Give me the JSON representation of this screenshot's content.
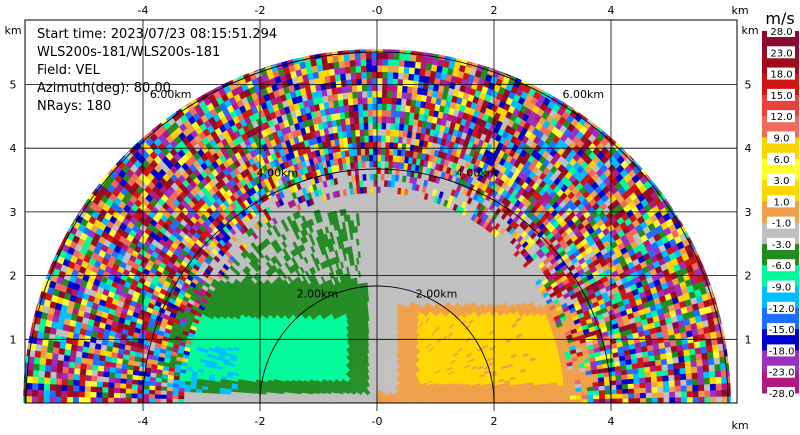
{
  "info": {
    "start_time": "Start time: 2023/07/23 08:15:51.294",
    "site": "WLS200s-181/WLS200s-181",
    "field": "Field: VEL",
    "azimuth": "Azimuth(deg): 80.00",
    "nrays": "NRays: 180"
  },
  "chart_data": {
    "type": "heatmap",
    "xlim": [
      -6.4,
      6.0
    ],
    "ylim": [
      0,
      6.0
    ],
    "x_ticks": [
      "-4",
      "-2",
      "-0",
      "2",
      "4"
    ],
    "x_tick_values": [
      -4,
      -2,
      0,
      2,
      4
    ],
    "y_ticks": [
      "1",
      "2",
      "3",
      "4",
      "5"
    ],
    "y_tick_values": [
      1,
      2,
      3,
      4,
      5
    ],
    "x_unit": "km",
    "y_unit": "km",
    "range_rings_km": [
      2,
      4,
      6
    ],
    "range_ring_labels": [
      "2.00km",
      "4.00km",
      "6.00km"
    ],
    "grid": true,
    "colorbar": {
      "unit": "m/s",
      "labels": [
        "28.0",
        "23.0",
        "18.0",
        "15.0",
        "12.0",
        "9.0",
        "6.0",
        "3.0",
        "1.0",
        "-1.0",
        "-3.0",
        "-6.0",
        "-9.0",
        "-12.0",
        "-15.0",
        "-18.0",
        "-23.0",
        "-28.0"
      ],
      "colors": [
        "#8b0a2e",
        "#a00c1c",
        "#d01414",
        "#e8403c",
        "#f06a5c",
        "#f8d400",
        "#ffff30",
        "#ffd700",
        "#f0a048",
        "#c0c0c0",
        "#228b22",
        "#00fa9a",
        "#00bfff",
        "#1e6fff",
        "#0000cd",
        "#9b30c0",
        "#b01a80",
        "#8b0a2e"
      ]
    }
  }
}
